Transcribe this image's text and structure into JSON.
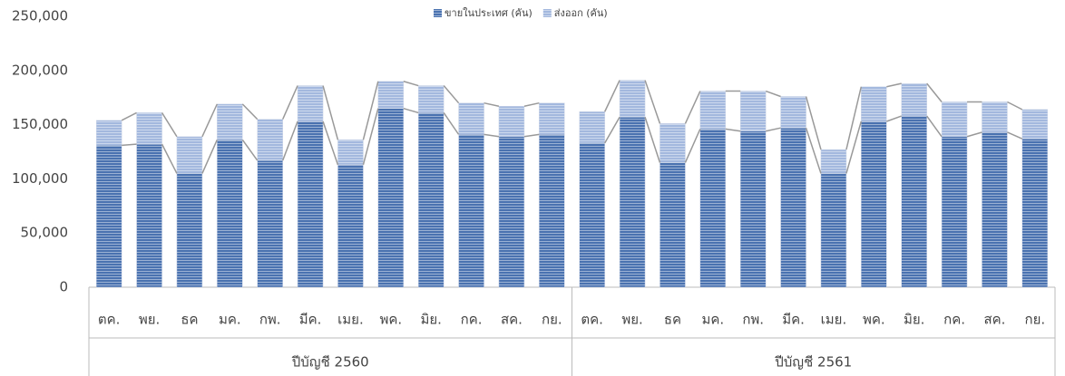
{
  "chart_data": {
    "type": "stacked_bar",
    "categories": [
      "ตค.",
      "พย.",
      "ธค",
      "มค.",
      "กพ.",
      "มีค.",
      "เมย.",
      "พค.",
      "มิย.",
      "กค.",
      "สค.",
      "กย.",
      "ตค.",
      "พย.",
      "ธค",
      "มค.",
      "กพ.",
      "มีค.",
      "เมย.",
      "พค.",
      "มิย.",
      "กค.",
      "สค.",
      "กย."
    ],
    "groups": [
      {
        "label": "ปีบัญชี 2560",
        "size": 12
      },
      {
        "label": "ปีบัญชี 2561",
        "size": 12
      }
    ],
    "series": [
      {
        "name": "ขายในประเทศ (คัน)",
        "color": "#4a72b0",
        "values": [
          131000,
          132000,
          105000,
          136000,
          117000,
          153000,
          113000,
          165000,
          161000,
          141000,
          139000,
          141000,
          133000,
          157000,
          115000,
          146000,
          144000,
          147000,
          105000,
          153000,
          158000,
          139000,
          143000,
          137000
        ]
      },
      {
        "name": "ส่งออก (คัน)",
        "color": "#a3b8de",
        "values": [
          23000,
          29000,
          34000,
          33000,
          38000,
          33000,
          23000,
          25000,
          25000,
          29000,
          28000,
          29000,
          29000,
          34000,
          36000,
          35000,
          37000,
          29000,
          22000,
          32000,
          30000,
          32000,
          28000,
          27000
        ]
      }
    ],
    "ylim": [
      0,
      250000
    ],
    "yticks": [
      0,
      {
        "value": 50000,
        "label": "50,000"
      },
      {
        "value": 100000,
        "label": "100,000"
      },
      {
        "value": 150000,
        "label": "150,000"
      },
      {
        "value": 200000,
        "label": "200,000"
      },
      {
        "value": 250000,
        "label": "250,000"
      }
    ],
    "grid": false,
    "series_lines": true,
    "legend": "top"
  }
}
